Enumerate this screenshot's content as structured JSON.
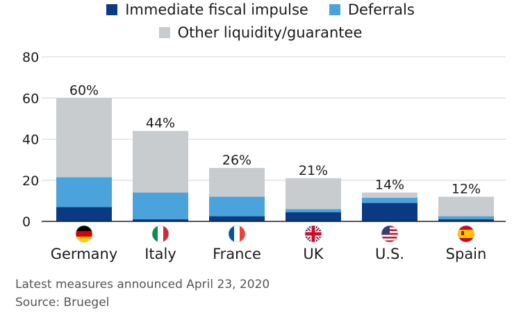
{
  "colors": {
    "immediate": "#0b3a85",
    "deferrals": "#4ba3dc",
    "other": "#c8cccf",
    "axis_text": "#1b1b1b",
    "footer_text": "#555555"
  },
  "footer": {
    "note": "Latest measures announced April 23, 2020",
    "source": "Source: Bruegel"
  },
  "chart_data": {
    "type": "bar",
    "stacked": true,
    "categories": [
      "Germany",
      "Italy",
      "France",
      "UK",
      "U.S.",
      "Spain"
    ],
    "series": [
      {
        "name": "Immediate fiscal impulse",
        "values": [
          7,
          1,
          2.5,
          4.5,
          9,
          1
        ],
        "color_key": "immediate"
      },
      {
        "name": "Deferrals",
        "values": [
          14.5,
          13,
          9.5,
          1.5,
          2.5,
          1.5
        ],
        "color_key": "deferrals"
      },
      {
        "name": "Other liquidity/guarantee",
        "values": [
          38.5,
          30,
          14,
          15,
          2.5,
          9.5
        ],
        "color_key": "other"
      }
    ],
    "totals_labels": [
      "60%",
      "44%",
      "26%",
      "21%",
      "14%",
      "12%"
    ],
    "flag_icons": [
      "germany-flag-icon",
      "italy-flag-icon",
      "france-flag-icon",
      "uk-flag-icon",
      "us-flag-icon",
      "spain-flag-icon"
    ],
    "y_ticks": [
      0,
      20,
      40,
      60,
      80
    ],
    "ylim": [
      0,
      80
    ],
    "xlabel": "",
    "ylabel": "",
    "grid": true,
    "legend_position": "top-center"
  }
}
